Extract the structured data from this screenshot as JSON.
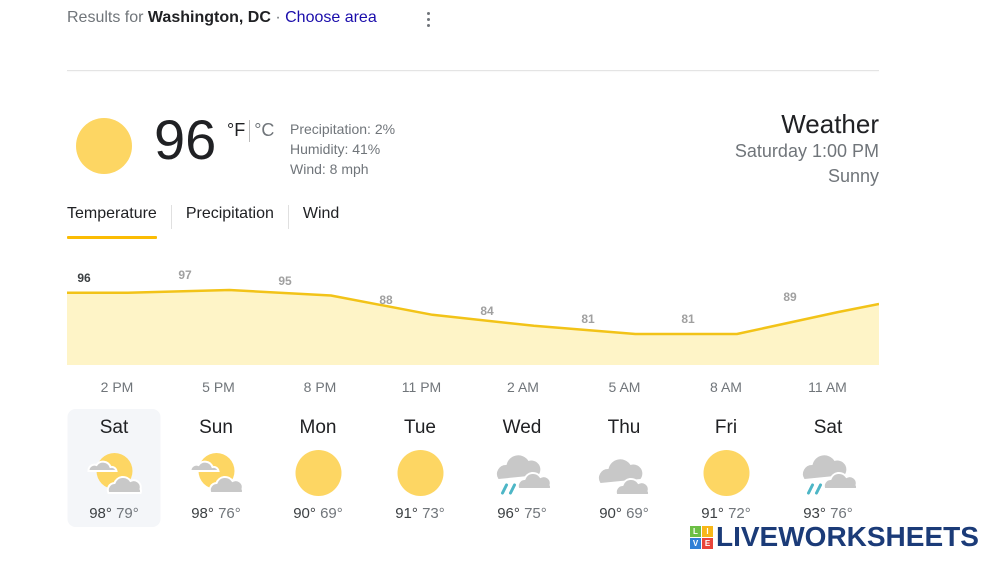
{
  "header": {
    "prefix": "Results for",
    "location": "Washington, DC",
    "separator": "·",
    "choose_area": "Choose area",
    "more_icon": "more-vert-icon"
  },
  "current": {
    "icon": "sunny-icon",
    "temperature": "96",
    "unit_f": "°F",
    "unit_c": "°C",
    "precipitation": "Precipitation: 2%",
    "humidity": "Humidity: 41%",
    "wind": "Wind: 8 mph"
  },
  "summary": {
    "title": "Weather",
    "datetime": "Saturday 1:00 PM",
    "condition": "Sunny"
  },
  "tabs": [
    {
      "label": "Temperature",
      "active": true
    },
    {
      "label": "Precipitation",
      "active": false
    },
    {
      "label": "Wind",
      "active": false
    }
  ],
  "chart_data": {
    "type": "area",
    "title": "Temperature",
    "x": [
      "2 PM",
      "5 PM",
      "8 PM",
      "11 PM",
      "2 AM",
      "5 AM",
      "8 AM",
      "11 AM"
    ],
    "values": [
      96,
      97,
      95,
      88,
      84,
      81,
      81,
      89
    ],
    "labels": [
      "96",
      "97",
      "95",
      "88",
      "84",
      "81",
      "81",
      "89"
    ],
    "unit": "°F",
    "line_color": "#f2c318",
    "fill_color": "#fef4c7",
    "grid": false,
    "legend": "none"
  },
  "times": [
    "2 PM",
    "5 PM",
    "8 PM",
    "11 PM",
    "2 AM",
    "5 AM",
    "8 AM",
    "11 AM"
  ],
  "forecast": [
    {
      "day": "Sat",
      "icon": "partly-cloudy-icon",
      "high": "98°",
      "low": "79°",
      "selected": true
    },
    {
      "day": "Sun",
      "icon": "partly-cloudy-icon",
      "high": "98°",
      "low": "76°",
      "selected": false
    },
    {
      "day": "Mon",
      "icon": "sunny-icon",
      "high": "90°",
      "low": "69°",
      "selected": false
    },
    {
      "day": "Tue",
      "icon": "sunny-icon",
      "high": "91°",
      "low": "73°",
      "selected": false
    },
    {
      "day": "Wed",
      "icon": "showers-icon",
      "high": "96°",
      "low": "75°",
      "selected": false
    },
    {
      "day": "Thu",
      "icon": "cloudy-icon",
      "high": "90°",
      "low": "69°",
      "selected": false
    },
    {
      "day": "Fri",
      "icon": "sunny-icon",
      "high": "91°",
      "low": "72°",
      "selected": false
    },
    {
      "day": "Sat",
      "icon": "showers-icon",
      "high": "93°",
      "low": "76°",
      "selected": false
    }
  ],
  "watermark": {
    "brand": "LIVEWORKSHEETS",
    "tiles": [
      "L",
      "I",
      "V",
      "E"
    ],
    "tile_colors": [
      "#6cbf45",
      "#f7b718",
      "#2f7fd6",
      "#e8443a"
    ],
    "text_color": "#1b3b78"
  },
  "colors": {
    "sun": "#fdd663",
    "cloud": "#c8c8c8",
    "rain": "#4db6c6",
    "tab_accent": "#fbbc04",
    "link": "#1a0dab"
  }
}
